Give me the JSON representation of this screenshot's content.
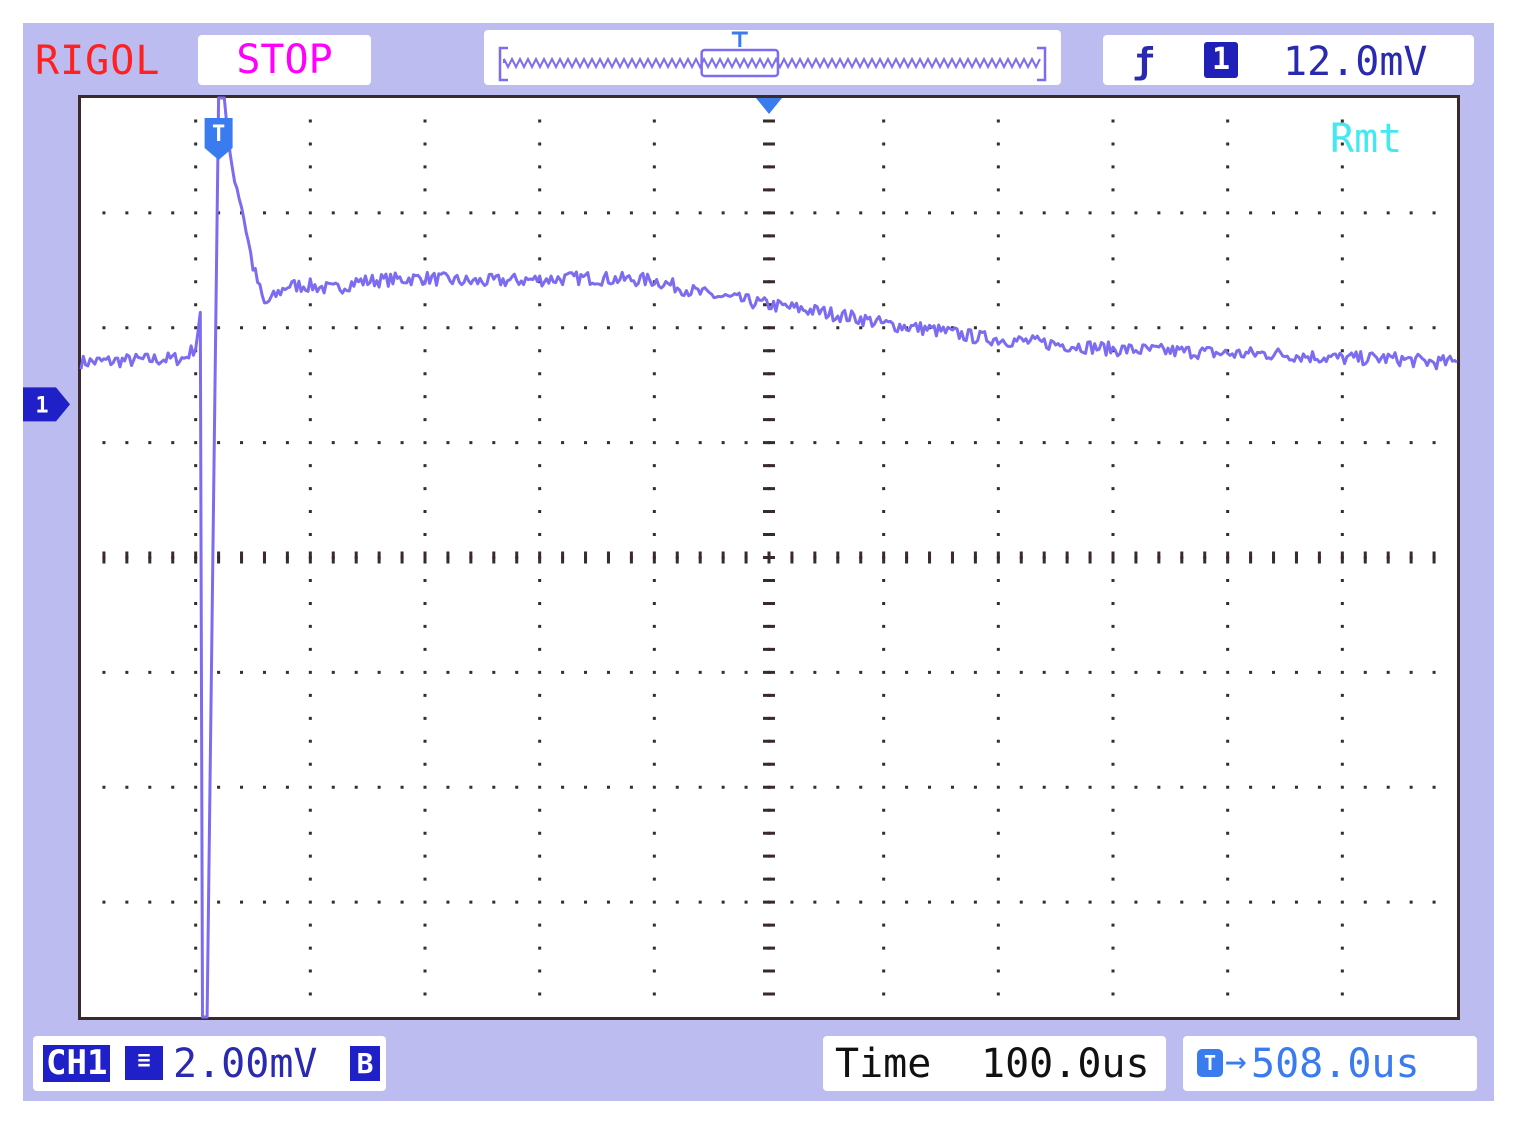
{
  "header": {
    "brand": "RIGOL",
    "status": "STOP",
    "trigger": {
      "edge_symbol": "ƒ",
      "channel": "1",
      "level": "12.0mV"
    }
  },
  "screen": {
    "mode_label": "Rmt",
    "trigger_marker_label": "T",
    "channel_marker_label": "1"
  },
  "footer": {
    "channel_tag": "CH1",
    "coupling_symbol": "≡",
    "scale": "2.00mV",
    "bandwidth_limit": "B",
    "time_label": "Time",
    "timebase": "100.0us",
    "offset_icon": "T",
    "offset_arrow": "→",
    "trigger_offset": "508.0us"
  },
  "colors": {
    "frame": "#bcbcf0",
    "trace": "#7b6cf2",
    "grid": "#3a2a2a",
    "brand": "#ff2020",
    "status": "#ff00ff",
    "accent": "#2a2ab0",
    "marker": "#3b7bf0",
    "remote": "#44e8f0"
  },
  "chart_data": {
    "type": "line",
    "grid_divisions": [
      12,
      8
    ],
    "xlim": [
      -1000,
      200
    ],
    "ylim": [
      -8,
      4
    ],
    "x_units": "us",
    "y_units": "mV",
    "series": [
      {
        "x": [
          -1000,
          -910,
          -900,
          -896,
          -894,
          -890,
          -880,
          -875,
          -870,
          -860,
          -850,
          -840,
          -820,
          -800,
          -780,
          -760,
          -740,
          -700,
          -660,
          -620,
          -560,
          -500,
          -460,
          -420,
          -400,
          -360,
          -320,
          -300,
          -260,
          -220,
          -200,
          -160,
          -120,
          -100,
          -60,
          -20,
          0,
          40,
          80,
          100,
          140,
          180,
          200
        ],
        "y": [
          0.55,
          0.6,
          0.75,
          1.2,
          -8.0,
          -8.0,
          4.0,
          4.0,
          3.2,
          2.6,
          1.8,
          1.3,
          1.55,
          1.55,
          1.5,
          1.6,
          1.62,
          1.65,
          1.6,
          1.62,
          1.65,
          1.62,
          1.45,
          1.35,
          1.3,
          1.22,
          1.12,
          1.05,
          0.98,
          0.88,
          0.85,
          0.8,
          0.75,
          0.72,
          0.7,
          0.68,
          0.66,
          0.66,
          0.62,
          0.6,
          0.6,
          0.55,
          0.55
        ]
      }
    ],
    "memory_window_start": 0.37,
    "memory_window_end": 0.51
  }
}
